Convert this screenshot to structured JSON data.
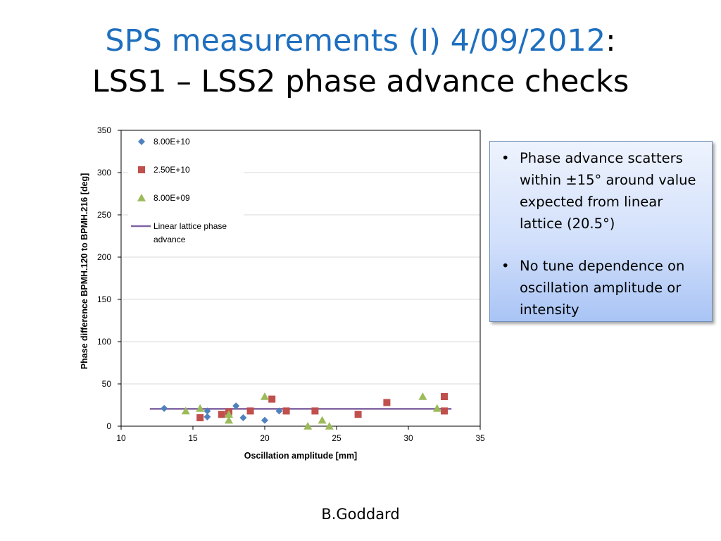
{
  "slide": {
    "title_line1": "SPS measurements (I) 4/09/2012",
    "title_colon": ":",
    "title_line2": "LSS1 – LSS2 phase advance checks",
    "footer": "B.Goddard"
  },
  "notes": {
    "bullets": [
      "Phase advance scatters within ±15° around value expected from linear lattice (20.5°)",
      "No tune dependence on oscillation amplitude or intensity"
    ],
    "bullet_glyph": "•"
  },
  "chart_data": {
    "type": "scatter",
    "xlabel": "Oscillation amplitude [mm]",
    "ylabel": "Phase difference BPMH.120 to BPMH.216 [deg]",
    "xlim": [
      10,
      35
    ],
    "ylim": [
      0,
      350
    ],
    "xticks": [
      10,
      15,
      20,
      25,
      30,
      35
    ],
    "yticks": [
      0,
      50,
      100,
      150,
      200,
      250,
      300,
      350
    ],
    "grid": "horizontal",
    "legend_position": "top-left",
    "series": [
      {
        "name": "8.00E+10",
        "marker": "diamond",
        "color": "#4f81bd",
        "points": [
          [
            13,
            21
          ],
          [
            16,
            11
          ],
          [
            16,
            18
          ],
          [
            18,
            24
          ],
          [
            18.5,
            10
          ],
          [
            20,
            7
          ],
          [
            21,
            18
          ]
        ]
      },
      {
        "name": "2.50E+10",
        "marker": "square",
        "color": "#c0504d",
        "points": [
          [
            15.5,
            10
          ],
          [
            17,
            14
          ],
          [
            17.5,
            17
          ],
          [
            19,
            18
          ],
          [
            20.5,
            32
          ],
          [
            21.5,
            18
          ],
          [
            23.5,
            18
          ],
          [
            26.5,
            14
          ],
          [
            28.5,
            28
          ],
          [
            32.5,
            35
          ],
          [
            32.5,
            18
          ]
        ]
      },
      {
        "name": "8.00E+09",
        "marker": "triangle",
        "color": "#9bbb59",
        "points": [
          [
            14.5,
            18
          ],
          [
            15.5,
            21
          ],
          [
            17.5,
            14
          ],
          [
            17.5,
            7
          ],
          [
            20,
            35
          ],
          [
            23,
            0
          ],
          [
            24,
            7
          ],
          [
            24.5,
            0
          ],
          [
            31,
            35
          ],
          [
            32,
            21
          ]
        ]
      },
      {
        "name": "Linear lattice phase advance",
        "marker": "line",
        "color": "#8064a2",
        "points": [
          [
            12,
            20.5
          ],
          [
            33,
            20.5
          ]
        ]
      }
    ]
  }
}
